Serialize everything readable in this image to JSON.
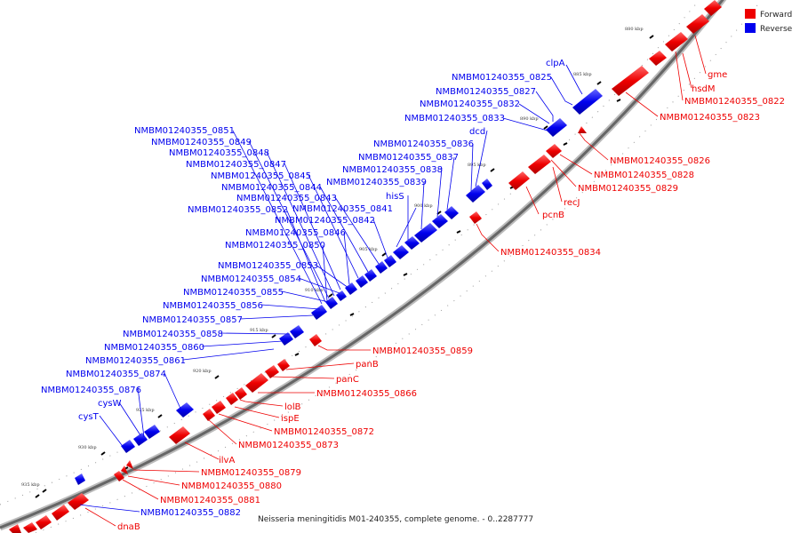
{
  "caption": "Neisseria meningitidis M01-240355, complete genome. - 0..2287777",
  "legend": [
    {
      "label": "Forward",
      "color": "#ee0000"
    },
    {
      "label": "Reverse",
      "color": "#0000ee"
    }
  ],
  "colors": {
    "forward": "#ee0000",
    "reverse": "#0000ee",
    "backbone": "#777777"
  },
  "ticks": [
    "880 kbp",
    "885 kbp",
    "890 kbp",
    "895 kbp",
    "900 kbp",
    "905 kbp",
    "910 kbp",
    "915 kbp",
    "920 kbp",
    "925 kbp",
    "930 kbp",
    "935 kbp"
  ],
  "reverse_labels": [
    "clpA",
    "NMBM01240355_0825",
    "NMBM01240355_0827",
    "NMBM01240355_0832",
    "NMBM01240355_0833",
    "dcd",
    "NMBM01240355_0836",
    "NMBM01240355_0837",
    "NMBM01240355_0838",
    "NMBM01240355_0839",
    "hisS",
    "NMBM01240355_0841",
    "NMBM01240355_0842",
    "NMBM01240355_0843",
    "NMBM01240355_0844",
    "NMBM01240355_0845",
    "NMBM01240355_0846",
    "NMBM01240355_0847",
    "NMBM01240355_0848",
    "NMBM01240355_0849",
    "NMBM01240355_0850",
    "NMBM01240355_0851",
    "NMBM01240355_0852",
    "NMBM01240355_0853",
    "NMBM01240355_0854",
    "NMBM01240355_0855",
    "NMBM01240355_0856",
    "NMBM01240355_0857",
    "NMBM01240355_0858",
    "NMBM01240355_0860",
    "NMBM01240355_0861",
    "NMBM01240355_0874",
    "NMBM01240355_0876",
    "cysW",
    "cysT",
    "NMBM01240355_0882"
  ],
  "forward_labels": [
    "gme",
    "hsdM",
    "NMBM01240355_0822",
    "NMBM01240355_0823",
    "NMBM01240355_0826",
    "NMBM01240355_0828",
    "NMBM01240355_0829",
    "recJ",
    "pcnB",
    "NMBM01240355_0834",
    "NMBM01240355_0859",
    "panB",
    "panC",
    "NMBM01240355_0866",
    "lolB",
    "ispE",
    "NMBM01240355_0872",
    "NMBM01240355_0873",
    "ilvA",
    "NMBM01240355_0879",
    "NMBM01240355_0880",
    "NMBM01240355_0881",
    "dnaB"
  ]
}
